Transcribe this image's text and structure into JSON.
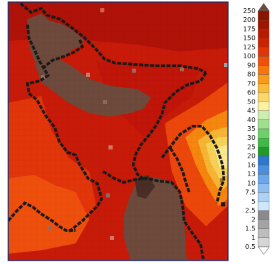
{
  "map": {
    "colors": {
      "land_brown": "#6e4a3c",
      "deep_red": "#b61208",
      "red": "#d2230b",
      "red_orange": "#e83c0a",
      "orange_red": "#f05a0c",
      "orange": "#f6860f",
      "light_orange": "#f8a92c",
      "yellow": "#f7d256",
      "pale_yellow": "#fbe98a",
      "border_line": "#1a1a1a",
      "frame": "#1e2a66"
    }
  },
  "colorbar": {
    "labels": [
      "250",
      "200",
      "175",
      "150",
      "125",
      "100",
      "90",
      "80",
      "70",
      "60",
      "50",
      "45",
      "40",
      "35",
      "30",
      "25",
      "20",
      "16",
      "13",
      "10",
      "7.5",
      "5",
      "2.5",
      "2",
      "1.5",
      "1",
      "0.5"
    ],
    "colors": [
      "#8a1400",
      "#a01500",
      "#b81a00",
      "#cf2000",
      "#e03308",
      "#ef4f0a",
      "#f6750e",
      "#f99a1c",
      "#fbbb3a",
      "#fcd76a",
      "#fdf0a0",
      "#cdeeb0",
      "#9fe08e",
      "#6dd06a",
      "#3fbb45",
      "#1f9a2b",
      "#2e77d0",
      "#4a8ee0",
      "#6aa6ec",
      "#8dbdf3",
      "#aed2f7",
      "#cfe7fa",
      "#8a8a8a",
      "#a3a3a3",
      "#bdbdbd",
      "#d6d6d6"
    ],
    "top_arrow_color": "#6e4a3c",
    "bottom_arrow_color": "#ffffff"
  }
}
